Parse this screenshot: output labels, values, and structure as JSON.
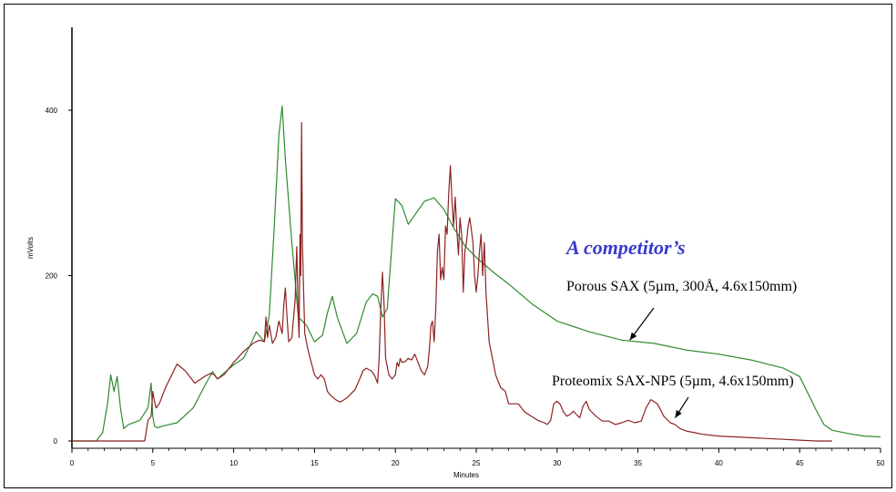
{
  "chart_data": {
    "type": "line",
    "xlabel": "Minutes",
    "ylabel": "mVolts",
    "xlim": [
      0,
      50
    ],
    "ylim": [
      -10,
      500
    ],
    "x_ticks": [
      0,
      5,
      10,
      15,
      20,
      25,
      30,
      35,
      40,
      45,
      50
    ],
    "y_ticks": [
      0,
      200,
      400
    ],
    "grid": false,
    "annotations": [
      {
        "text": "A competitor’s",
        "style": "bold-italic",
        "color": "#3a3acb"
      },
      {
        "text": "Porous SAX (5µm, 300Å, 4.6x150mm)",
        "arrow_to": {
          "x": 34.5,
          "y": 122
        }
      },
      {
        "text": "Proteomix SAX-NP5 (5µm, 4.6x150mm)",
        "arrow_to": {
          "x": 37.3,
          "y": 28
        }
      }
    ],
    "series": [
      {
        "color": "#2e8b2e",
        "x": [
          0,
          1.5,
          1.9,
          2.2,
          2.4,
          2.6,
          2.8,
          3.0,
          3.2,
          3.5,
          4.2,
          4.7,
          4.9,
          5.0,
          5.1,
          5.3,
          5.6,
          6.5,
          7.5,
          8.3,
          8.7,
          9.0,
          9.4,
          10.0,
          10.6,
          11.0,
          11.4,
          11.9,
          12.2,
          12.5,
          12.8,
          13.0,
          13.2,
          13.6,
          14.0,
          14.5,
          15.0,
          15.5,
          15.8,
          16.1,
          16.4,
          17.0,
          17.6,
          18.2,
          18.6,
          18.9,
          19.2,
          19.5,
          19.8,
          20.0,
          20.4,
          20.8,
          21.3,
          21.8,
          22.4,
          23.0,
          23.6,
          24.3,
          25.0,
          26.0,
          27.0,
          28.5,
          30.0,
          32.0,
          34.0,
          36.0,
          38.0,
          40.0,
          42.0,
          44.0,
          45.0,
          45.5,
          46.0,
          46.5,
          47.0,
          48.0,
          49.0,
          50.0
        ],
        "y": [
          0,
          0,
          10,
          45,
          80,
          60,
          78,
          40,
          15,
          20,
          25,
          40,
          70,
          30,
          18,
          16,
          18,
          22,
          40,
          70,
          84,
          75,
          82,
          92,
          100,
          115,
          132,
          120,
          152,
          255,
          370,
          405,
          340,
          240,
          150,
          140,
          120,
          128,
          155,
          175,
          150,
          118,
          130,
          168,
          178,
          175,
          150,
          160,
          240,
          293,
          285,
          262,
          276,
          290,
          294,
          280,
          258,
          236,
          222,
          205,
          190,
          165,
          145,
          132,
          122,
          118,
          110,
          105,
          98,
          88,
          78,
          58,
          38,
          20,
          13,
          9,
          6,
          5
        ]
      },
      {
        "color": "#8b2323",
        "x": [
          0,
          4.5,
          4.6,
          4.7,
          4.9,
          5.0,
          5.1,
          5.2,
          5.4,
          5.8,
          6.5,
          7.0,
          7.6,
          8.2,
          8.6,
          8.8,
          9.0,
          9.4,
          10.0,
          10.6,
          11.2,
          11.6,
          11.9,
          12.0,
          12.1,
          12.2,
          12.4,
          12.6,
          12.8,
          13.0,
          13.1,
          13.2,
          13.3,
          13.4,
          13.6,
          13.8,
          13.9,
          14.0,
          14.05,
          14.1,
          14.15,
          14.2,
          14.25,
          14.3,
          14.4,
          14.6,
          14.8,
          15.0,
          15.2,
          15.4,
          15.6,
          15.8,
          16.0,
          16.3,
          16.6,
          17.0,
          17.5,
          17.8,
          18.0,
          18.2,
          18.5,
          18.7,
          18.9,
          19.0,
          19.1,
          19.2,
          19.3,
          19.4,
          19.6,
          19.8,
          20.0,
          20.1,
          20.2,
          20.3,
          20.4,
          20.6,
          20.8,
          21.0,
          21.2,
          21.4,
          21.6,
          21.8,
          22.0,
          22.1,
          22.2,
          22.3,
          22.4,
          22.5,
          22.6,
          22.7,
          22.8,
          22.9,
          23.0,
          23.1,
          23.2,
          23.3,
          23.4,
          23.5,
          23.6,
          23.7,
          23.8,
          23.9,
          24.0,
          24.1,
          24.2,
          24.3,
          24.4,
          24.5,
          24.6,
          24.7,
          24.8,
          24.9,
          25.0,
          25.1,
          25.2,
          25.3,
          25.4,
          25.5,
          25.6,
          25.7,
          25.8,
          26.0,
          26.2,
          26.5,
          26.8,
          27.0,
          27.2,
          27.6,
          28.0,
          28.4,
          28.8,
          29.2,
          29.4,
          29.6,
          29.8,
          30.0,
          30.2,
          30.4,
          30.6,
          30.8,
          31.0,
          31.2,
          31.4,
          31.6,
          31.8,
          32.0,
          32.4,
          32.8,
          33.2,
          33.6,
          34.0,
          34.4,
          34.8,
          35.2,
          35.5,
          35.8,
          36.2,
          36.6,
          37.0,
          37.3,
          37.6,
          38.0,
          38.5,
          39.0,
          40.0,
          41.0,
          42.0,
          43.0,
          44.0,
          45.0,
          46.0,
          46.5,
          47.0
        ],
        "y": [
          0,
          0,
          12,
          25,
          30,
          60,
          48,
          40,
          45,
          65,
          93,
          85,
          70,
          78,
          82,
          80,
          75,
          80,
          95,
          108,
          118,
          122,
          120,
          150,
          125,
          140,
          118,
          125,
          145,
          130,
          165,
          185,
          150,
          120,
          125,
          170,
          235,
          150,
          125,
          250,
          200,
          385,
          240,
          200,
          130,
          110,
          95,
          80,
          75,
          80,
          75,
          60,
          55,
          50,
          47,
          52,
          62,
          75,
          85,
          88,
          85,
          80,
          70,
          100,
          160,
          204,
          165,
          100,
          80,
          75,
          80,
          95,
          90,
          100,
          95,
          96,
          100,
          98,
          105,
          95,
          85,
          80,
          90,
          110,
          140,
          145,
          120,
          160,
          230,
          250,
          195,
          210,
          195,
          260,
          250,
          300,
          333,
          290,
          260,
          295,
          255,
          225,
          270,
          250,
          180,
          230,
          240,
          260,
          270,
          255,
          240,
          200,
          180,
          200,
          230,
          250,
          200,
          240,
          180,
          150,
          120,
          100,
          80,
          65,
          60,
          45,
          45,
          45,
          35,
          30,
          25,
          22,
          20,
          25,
          45,
          48,
          44,
          35,
          30,
          32,
          36,
          32,
          28,
          42,
          48,
          38,
          30,
          24,
          24,
          20,
          22,
          25,
          22,
          24,
          40,
          50,
          45,
          30,
          22,
          20,
          15,
          12,
          10,
          8,
          6,
          5,
          4,
          3,
          2,
          1,
          0,
          0,
          0
        ]
      }
    ]
  }
}
